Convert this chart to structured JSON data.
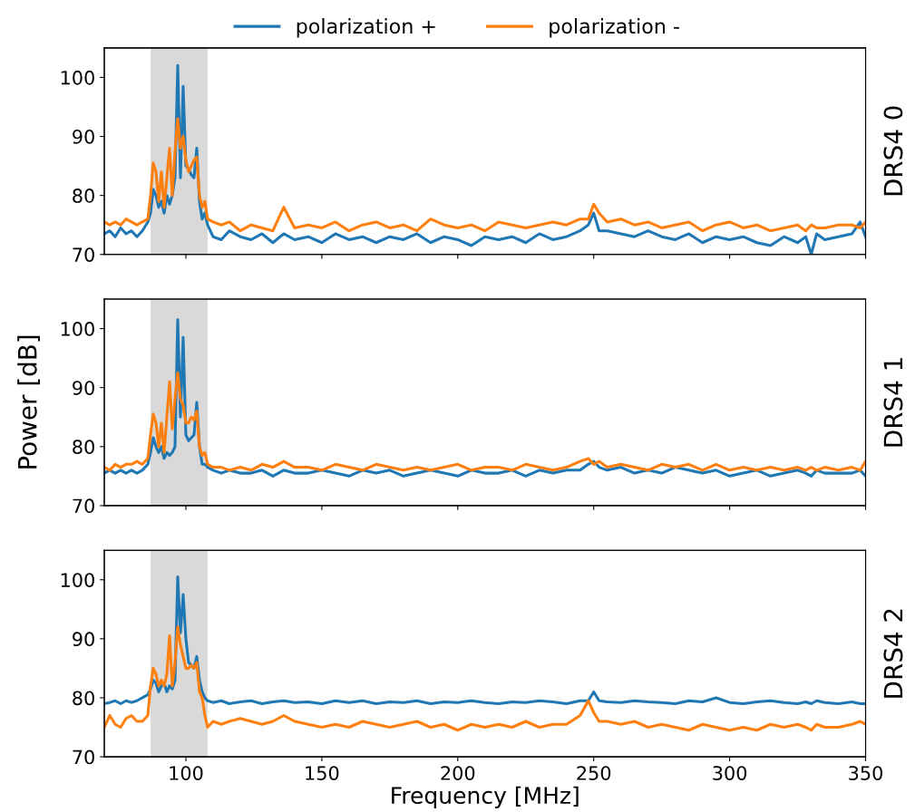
{
  "chart_data": [
    {
      "type": "line",
      "y2label": "DRS4 0",
      "xlim": [
        70,
        350
      ],
      "xticks": [
        100,
        150,
        200,
        250,
        300,
        350
      ],
      "ylim": [
        70,
        105
      ],
      "yticks": [
        70,
        80,
        90,
        100
      ],
      "tick_labels": "y",
      "legend": "top",
      "grid": false,
      "bands": [
        {
          "axis": "x",
          "from": 87,
          "to": 108,
          "color": "#d9d9d9"
        }
      ],
      "x": [
        70,
        72,
        74,
        76,
        78,
        80,
        82,
        84,
        86,
        87,
        88,
        89,
        90,
        91,
        92,
        93,
        94,
        95,
        96,
        97,
        98,
        99,
        100,
        101,
        102,
        103,
        104,
        105,
        106,
        107,
        108,
        110,
        113,
        116,
        120,
        124,
        128,
        132,
        136,
        140,
        145,
        150,
        155,
        160,
        165,
        170,
        175,
        180,
        185,
        190,
        195,
        200,
        205,
        210,
        215,
        220,
        225,
        230,
        235,
        240,
        245,
        248,
        250,
        252,
        255,
        260,
        265,
        270,
        275,
        280,
        285,
        290,
        295,
        300,
        305,
        310,
        315,
        320,
        325,
        328,
        330,
        332,
        335,
        340,
        345,
        348,
        350
      ],
      "series": [
        {
          "name": "polarization +",
          "color": "#1f77b4",
          "values": [
            73.5,
            74,
            73,
            74.5,
            73.5,
            74,
            73,
            74,
            75.5,
            77,
            81,
            80,
            78,
            79,
            77,
            80,
            78.5,
            80,
            83,
            102,
            83,
            98.5,
            85,
            84.5,
            83.5,
            83,
            88,
            79,
            76,
            77,
            75,
            73,
            72.5,
            74,
            73,
            72.5,
            73.5,
            72,
            73.5,
            72.5,
            73,
            72,
            73.5,
            72.5,
            73,
            72,
            73,
            72.5,
            73.5,
            72,
            73,
            72.5,
            71.5,
            73,
            72.5,
            73,
            72,
            73.5,
            72.5,
            73,
            74,
            75,
            77,
            74,
            74,
            73.5,
            73,
            74,
            73,
            72.5,
            73.5,
            72,
            73,
            72.5,
            73,
            72,
            71.5,
            73,
            72,
            73,
            70,
            73.5,
            72.5,
            73,
            73.5,
            75.5,
            73
          ]
        },
        {
          "name": "polarization -",
          "color": "#ff7f0e",
          "values": [
            75.5,
            75,
            75.5,
            75,
            76,
            75.5,
            75,
            75.5,
            76,
            80,
            85.5,
            84,
            79,
            84,
            78,
            83,
            88,
            80,
            87.5,
            93,
            88,
            90,
            86,
            84,
            85,
            86,
            86.5,
            80,
            78,
            79,
            76,
            75.5,
            75,
            75.5,
            74,
            75,
            74.5,
            74,
            78,
            74.5,
            75,
            74.5,
            75.5,
            74,
            75,
            75.5,
            74.5,
            75,
            74,
            76,
            75,
            74.5,
            75,
            74,
            75.5,
            75,
            74.5,
            75,
            75.5,
            75,
            76,
            76,
            78.5,
            77,
            75.5,
            76,
            75,
            75.5,
            74.5,
            75,
            75.5,
            74,
            75,
            75.5,
            74.5,
            75,
            74,
            74.5,
            75,
            74,
            75,
            74.5,
            74.5,
            75,
            75,
            74.5,
            75.5
          ]
        }
      ]
    },
    {
      "type": "line",
      "y2label": "DRS4 1",
      "ylabel": "Power [dB]",
      "xlim": [
        70,
        350
      ],
      "xticks": [
        100,
        150,
        200,
        250,
        300,
        350
      ],
      "ylim": [
        70,
        105
      ],
      "yticks": [
        70,
        80,
        90,
        100
      ],
      "tick_labels": "y",
      "grid": false,
      "bands": [
        {
          "axis": "x",
          "from": 87,
          "to": 108,
          "color": "#d9d9d9"
        }
      ],
      "x": [
        70,
        72,
        74,
        76,
        78,
        80,
        82,
        84,
        86,
        87,
        88,
        89,
        90,
        91,
        92,
        93,
        94,
        95,
        96,
        97,
        98,
        99,
        100,
        101,
        102,
        103,
        104,
        105,
        106,
        107,
        108,
        110,
        113,
        116,
        120,
        124,
        128,
        132,
        136,
        140,
        145,
        150,
        155,
        160,
        165,
        170,
        175,
        180,
        185,
        190,
        195,
        200,
        205,
        210,
        215,
        220,
        225,
        230,
        235,
        240,
        245,
        248,
        250,
        252,
        255,
        260,
        265,
        270,
        275,
        280,
        285,
        290,
        295,
        300,
        305,
        310,
        315,
        320,
        325,
        328,
        330,
        332,
        335,
        340,
        345,
        348,
        350
      ],
      "series": [
        {
          "color": "#1f77b4",
          "values": [
            75.5,
            76,
            75.5,
            76,
            75.5,
            76,
            75.5,
            76,
            77,
            79,
            81.5,
            80,
            79,
            80,
            78,
            79,
            78.5,
            79,
            80,
            101.5,
            85,
            98.5,
            82,
            81,
            81.5,
            82,
            87.5,
            80,
            77,
            77,
            76.5,
            76,
            75.5,
            76,
            75.5,
            75.5,
            76,
            75,
            76,
            75.5,
            75.5,
            76,
            75.5,
            75,
            76,
            75.5,
            76,
            75,
            75.5,
            76,
            75.5,
            75,
            76,
            75.5,
            75.5,
            76,
            75,
            76,
            75.5,
            76,
            76,
            77,
            77.5,
            76.5,
            76,
            76.5,
            75.5,
            76,
            75.5,
            76.5,
            76,
            75.5,
            76,
            75,
            75.5,
            76,
            75,
            75.5,
            76,
            75.5,
            75,
            76,
            75.5,
            75.5,
            75.5,
            76,
            75
          ]
        },
        {
          "color": "#ff7f0e",
          "values": [
            76.5,
            76,
            77,
            76.5,
            77,
            77,
            77.5,
            77,
            78,
            82,
            85.5,
            84,
            80,
            84,
            79,
            85,
            91,
            83,
            88,
            92.5,
            88,
            87,
            84,
            84,
            85,
            84.5,
            86,
            80,
            78.5,
            79,
            77,
            76.5,
            76.5,
            76,
            76.5,
            76,
            77,
            76.5,
            77.5,
            76.5,
            76.5,
            76,
            77,
            76.5,
            76,
            77,
            76.5,
            76,
            76.5,
            76,
            76.5,
            77,
            76,
            76.5,
            76.5,
            76,
            77,
            76.5,
            76,
            76.5,
            77.5,
            78,
            77,
            77.5,
            76.5,
            77,
            76.5,
            76,
            77,
            76.5,
            77,
            76,
            77,
            76,
            76.5,
            76,
            76.5,
            76,
            76.5,
            76,
            76.5,
            76,
            76.5,
            76,
            76.5,
            76,
            77.5
          ]
        }
      ]
    },
    {
      "type": "line",
      "y2label": "DRS4 2",
      "xlabel": "Frequency [MHz]",
      "xlim": [
        70,
        350
      ],
      "xticks": [
        100,
        150,
        200,
        250,
        300,
        350
      ],
      "ylim": [
        70,
        105
      ],
      "yticks": [
        70,
        80,
        90,
        100
      ],
      "grid": false,
      "bands": [
        {
          "axis": "x",
          "from": 87,
          "to": 108,
          "color": "#d9d9d9"
        }
      ],
      "x": [
        70,
        72,
        74,
        76,
        78,
        80,
        82,
        84,
        86,
        87,
        88,
        89,
        90,
        91,
        92,
        93,
        94,
        95,
        96,
        97,
        98,
        99,
        100,
        101,
        102,
        103,
        104,
        105,
        106,
        107,
        108,
        110,
        113,
        116,
        120,
        124,
        128,
        132,
        136,
        140,
        145,
        150,
        155,
        160,
        165,
        170,
        175,
        180,
        185,
        190,
        195,
        200,
        205,
        210,
        215,
        220,
        225,
        230,
        235,
        240,
        245,
        248,
        250,
        252,
        255,
        260,
        265,
        270,
        275,
        280,
        285,
        290,
        295,
        300,
        305,
        310,
        315,
        320,
        325,
        328,
        330,
        332,
        335,
        340,
        345,
        348,
        350
      ],
      "series": [
        {
          "color": "#1f77b4",
          "values": [
            79,
            79.2,
            79.5,
            79,
            79.5,
            79.2,
            79.5,
            80,
            80.5,
            81.5,
            83,
            82.5,
            81,
            82,
            82.5,
            81,
            82,
            81.5,
            83,
            100.5,
            91,
            97.5,
            90,
            86,
            85.5,
            85,
            87,
            83,
            81,
            80,
            79.5,
            79.2,
            79.5,
            79,
            79.3,
            79.5,
            79,
            79.3,
            79.5,
            79.2,
            79.3,
            79,
            79.5,
            79.2,
            79.5,
            79,
            79.3,
            79.2,
            79.5,
            79,
            79.3,
            79.2,
            79.5,
            79.2,
            79,
            79.3,
            79.2,
            79.5,
            79.3,
            79,
            79.5,
            79.5,
            81,
            79.5,
            79.3,
            79.2,
            79.5,
            79.3,
            79.2,
            79,
            79.5,
            79.3,
            80,
            79.2,
            79,
            79.3,
            79.5,
            79.2,
            79,
            79.3,
            79,
            79.5,
            79.2,
            79,
            79.3,
            79,
            79
          ]
        },
        {
          "color": "#ff7f0e",
          "values": [
            75,
            77,
            75.5,
            75,
            76.5,
            77,
            76,
            76,
            77,
            82,
            85,
            84,
            82,
            83,
            82,
            84,
            90.5,
            82,
            86,
            92,
            89,
            87,
            85,
            85,
            85.5,
            85,
            86,
            81,
            80,
            77,
            75,
            76,
            75.5,
            76,
            76.5,
            76,
            75.5,
            76,
            77,
            76,
            75.5,
            75,
            75.5,
            75,
            76,
            75.5,
            75,
            75.5,
            76,
            75,
            75.5,
            74.5,
            75.5,
            75,
            75.5,
            75,
            76,
            75,
            75.5,
            75.5,
            77,
            79.5,
            77.5,
            76,
            76,
            75.5,
            76,
            75,
            75.5,
            75,
            74.5,
            75.5,
            75,
            74.5,
            75,
            74.5,
            75.5,
            75,
            75.5,
            75,
            74.5,
            75.5,
            75,
            75,
            75.5,
            76,
            75.5
          ]
        }
      ]
    }
  ]
}
